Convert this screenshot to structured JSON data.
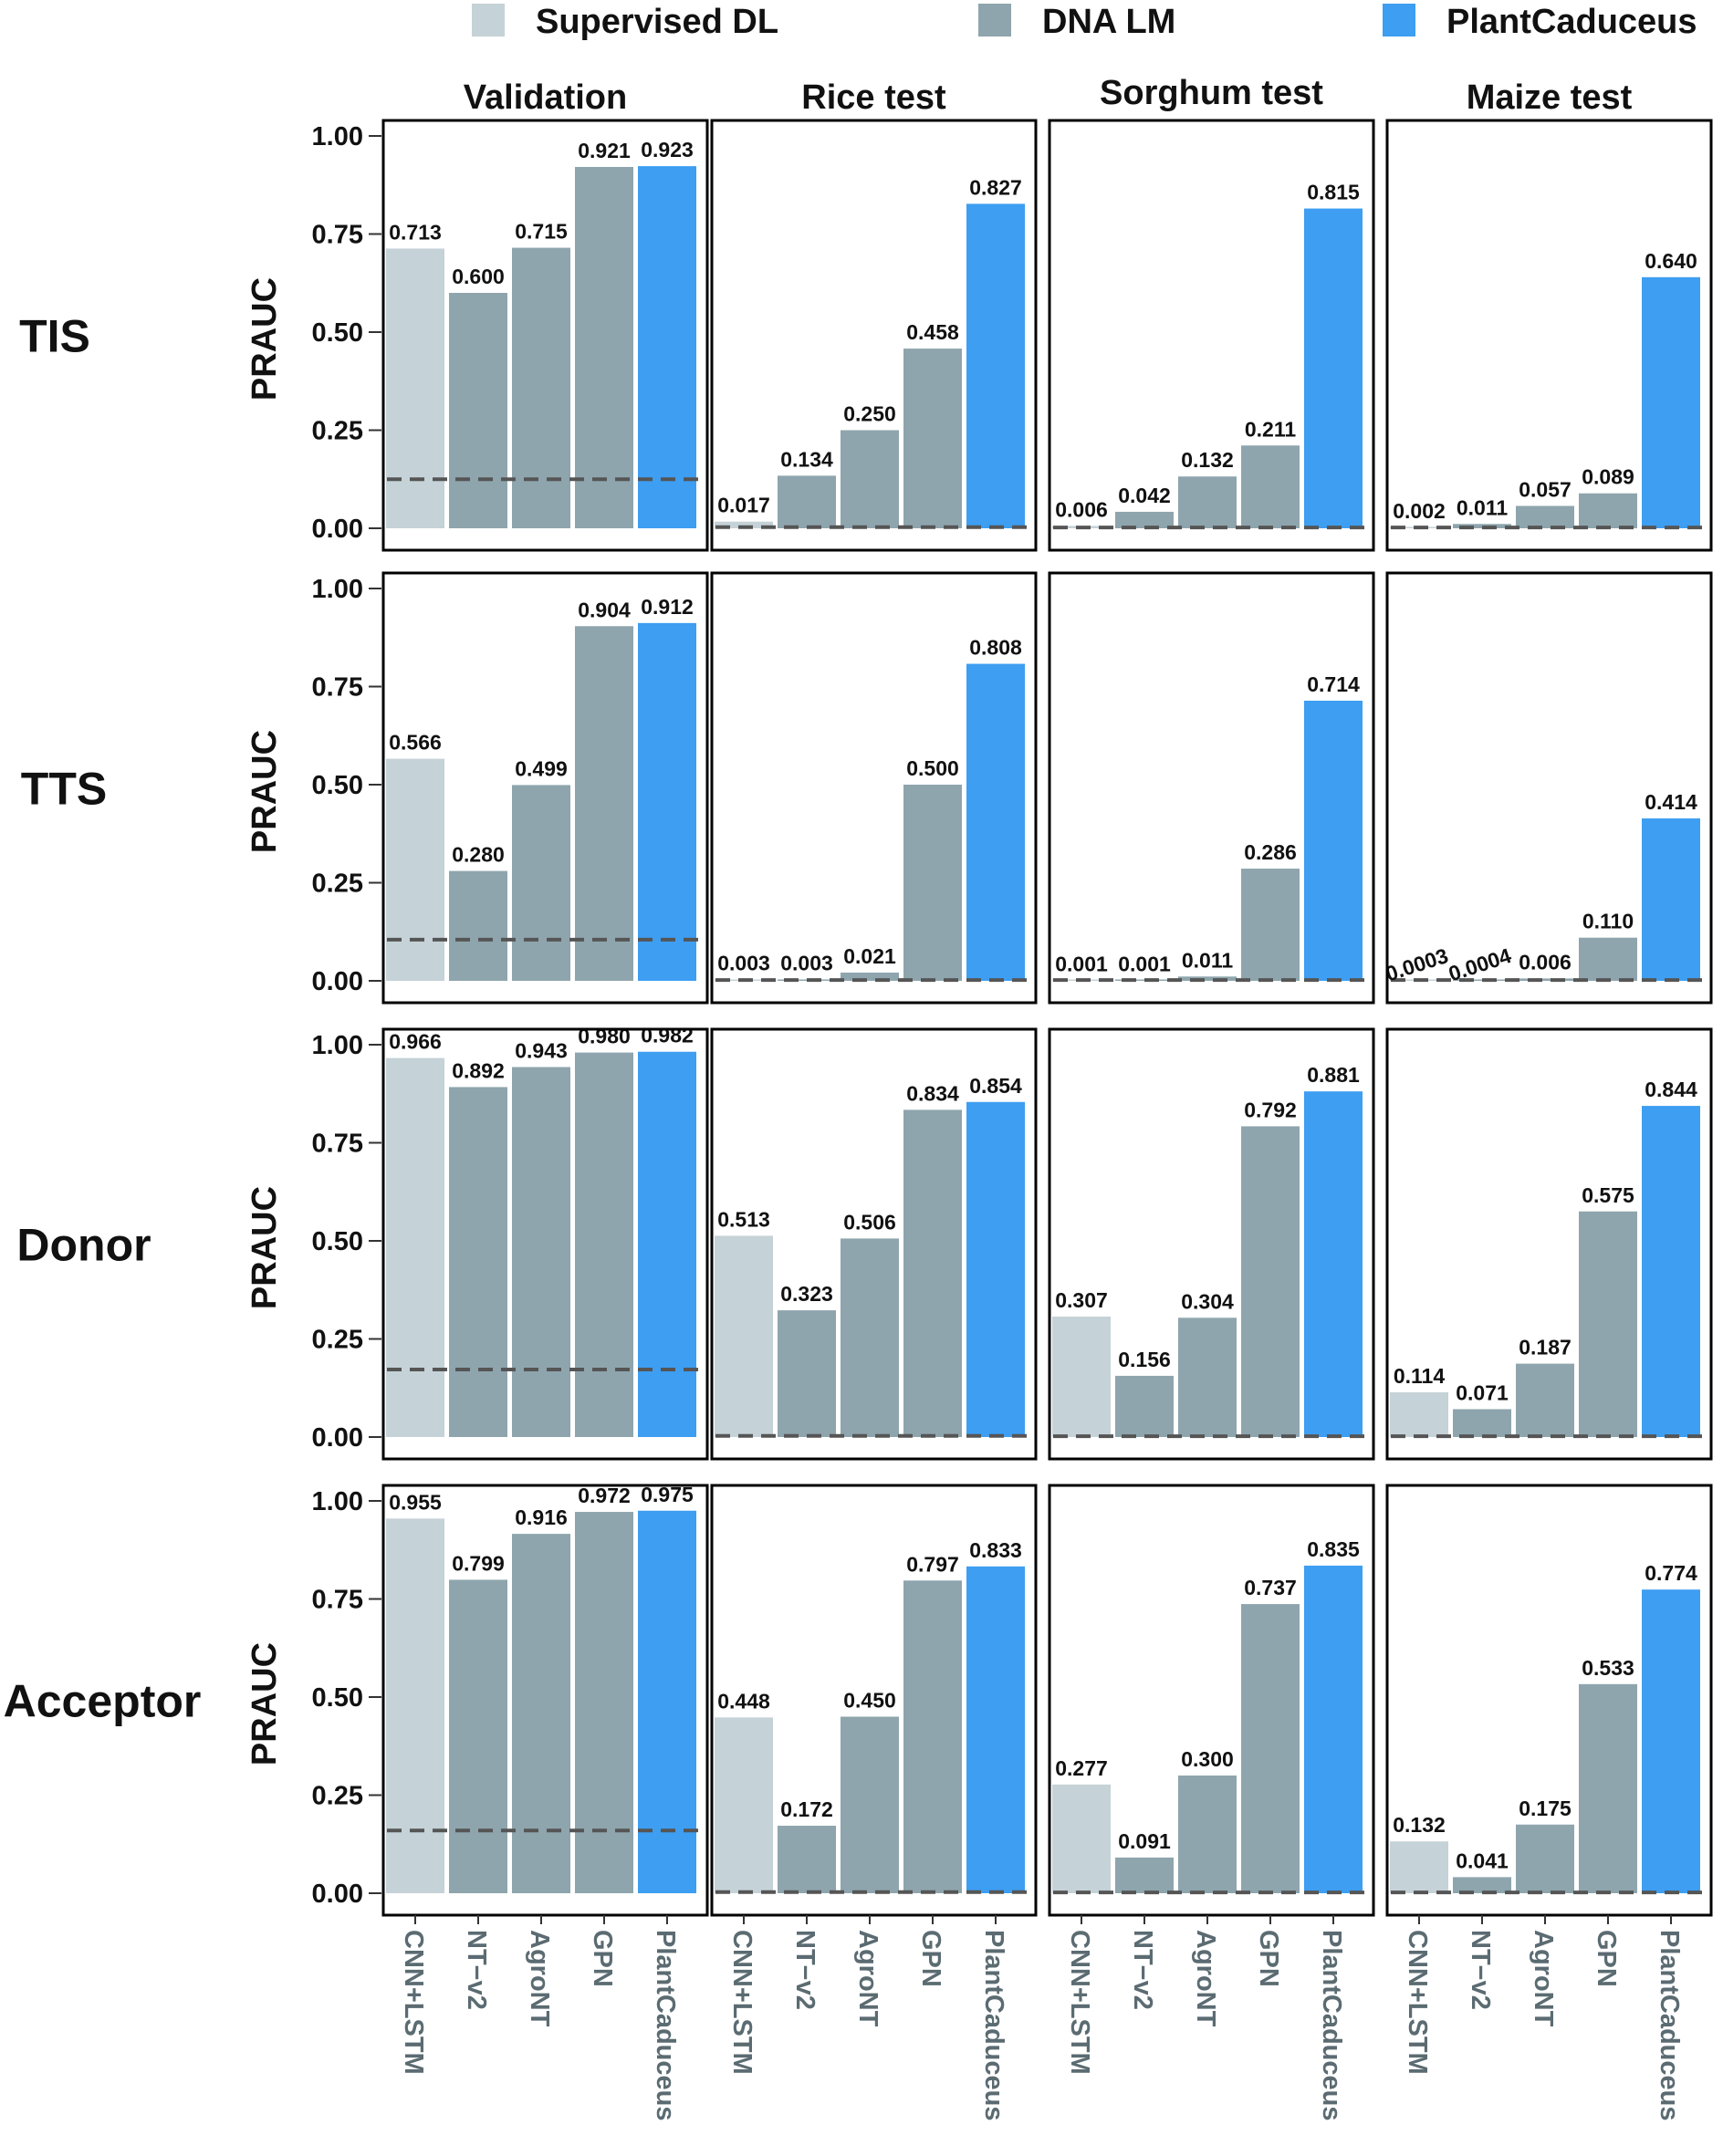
{
  "legend": [
    {
      "label": "Supervised DL",
      "color": "#c5d2d7"
    },
    {
      "label": "DNA LM",
      "color": "#8ea5ad"
    },
    {
      "label": "PlantCaduceus",
      "color": "#3d9ef2"
    }
  ],
  "chart_data": {
    "type": "bar",
    "y_label": "PRAUC",
    "y_ticks": [
      "1.00",
      "0.75",
      "0.50",
      "0.25",
      "0.00"
    ],
    "ylim": [
      0,
      1
    ],
    "grid": false,
    "legend_position": "top",
    "categories": [
      "CNN+LSTM",
      "NT−v2",
      "AgroNT",
      "GPN",
      "PlantCaduceus"
    ],
    "category_group": [
      "Supervised DL",
      "DNA LM",
      "DNA LM",
      "DNA LM",
      "PlantCaduceus"
    ],
    "columns": [
      "Validation",
      "Rice test",
      "Sorghum test",
      "Maize test"
    ],
    "rows": [
      {
        "name": "TIS",
        "panels": [
          {
            "values": [
              0.713,
              0.6,
              0.715,
              0.921,
              0.923
            ],
            "labels": [
              "0.713",
              "0.600",
              "0.715",
              "0.921",
              "0.923"
            ],
            "baseline": 0.125
          },
          {
            "values": [
              0.017,
              0.134,
              0.25,
              0.458,
              0.827
            ],
            "labels": [
              "0.017",
              "0.134",
              "0.250",
              "0.458",
              "0.827"
            ],
            "baseline": 0.003
          },
          {
            "values": [
              0.006,
              0.042,
              0.132,
              0.211,
              0.815
            ],
            "labels": [
              "0.006",
              "0.042",
              "0.132",
              "0.211",
              "0.815"
            ],
            "baseline": 0.002
          },
          {
            "values": [
              0.002,
              0.011,
              0.057,
              0.089,
              0.64
            ],
            "labels": [
              "0.002",
              "0.011",
              "0.057",
              "0.089",
              "0.640"
            ],
            "baseline": 0.002
          }
        ]
      },
      {
        "name": "TTS",
        "panels": [
          {
            "values": [
              0.566,
              0.28,
              0.499,
              0.904,
              0.912
            ],
            "labels": [
              "0.566",
              "0.280",
              "0.499",
              "0.904",
              "0.912"
            ],
            "baseline": 0.105
          },
          {
            "values": [
              0.003,
              0.003,
              0.021,
              0.5,
              0.808
            ],
            "labels": [
              "0.003",
              "0.003",
              "0.021",
              "0.500",
              "0.808"
            ],
            "baseline": 0.002
          },
          {
            "values": [
              0.001,
              0.001,
              0.011,
              0.286,
              0.714
            ],
            "labels": [
              "0.001",
              "0.001",
              "0.011",
              "0.286",
              "0.714"
            ],
            "baseline": 0.002
          },
          {
            "values": [
              0.0003,
              0.0004,
              0.006,
              0.11,
              0.414
            ],
            "labels": [
              "0.0003",
              "0.0004",
              "0.006",
              "0.110",
              "0.414"
            ],
            "baseline": 0.002
          }
        ]
      },
      {
        "name": "Donor",
        "panels": [
          {
            "values": [
              0.966,
              0.892,
              0.943,
              0.98,
              0.982
            ],
            "labels": [
              "0.966",
              "0.892",
              "0.943",
              "0.980",
              "0.982"
            ],
            "baseline": 0.172
          },
          {
            "values": [
              0.513,
              0.323,
              0.506,
              0.834,
              0.854
            ],
            "labels": [
              "0.513",
              "0.323",
              "0.506",
              "0.834",
              "0.854"
            ],
            "baseline": 0.003
          },
          {
            "values": [
              0.307,
              0.156,
              0.304,
              0.792,
              0.881
            ],
            "labels": [
              "0.307",
              "0.156",
              "0.304",
              "0.792",
              "0.881"
            ],
            "baseline": 0.002
          },
          {
            "values": [
              0.114,
              0.071,
              0.187,
              0.575,
              0.844
            ],
            "labels": [
              "0.114",
              "0.071",
              "0.187",
              "0.575",
              "0.844"
            ],
            "baseline": 0.002
          }
        ]
      },
      {
        "name": "Acceptor",
        "panels": [
          {
            "values": [
              0.955,
              0.799,
              0.916,
              0.972,
              0.975
            ],
            "labels": [
              "0.955",
              "0.799",
              "0.916",
              "0.972",
              "0.975"
            ],
            "baseline": 0.16
          },
          {
            "values": [
              0.448,
              0.172,
              0.45,
              0.797,
              0.833
            ],
            "labels": [
              "0.448",
              "0.172",
              "0.450",
              "0.797",
              "0.833"
            ],
            "baseline": 0.003
          },
          {
            "values": [
              0.277,
              0.091,
              0.3,
              0.737,
              0.835
            ],
            "labels": [
              "0.277",
              "0.091",
              "0.300",
              "0.737",
              "0.835"
            ],
            "baseline": 0.002
          },
          {
            "values": [
              0.132,
              0.041,
              0.175,
              0.533,
              0.774
            ],
            "labels": [
              "0.132",
              "0.041",
              "0.175",
              "0.533",
              "0.774"
            ],
            "baseline": 0.002
          }
        ]
      }
    ]
  }
}
